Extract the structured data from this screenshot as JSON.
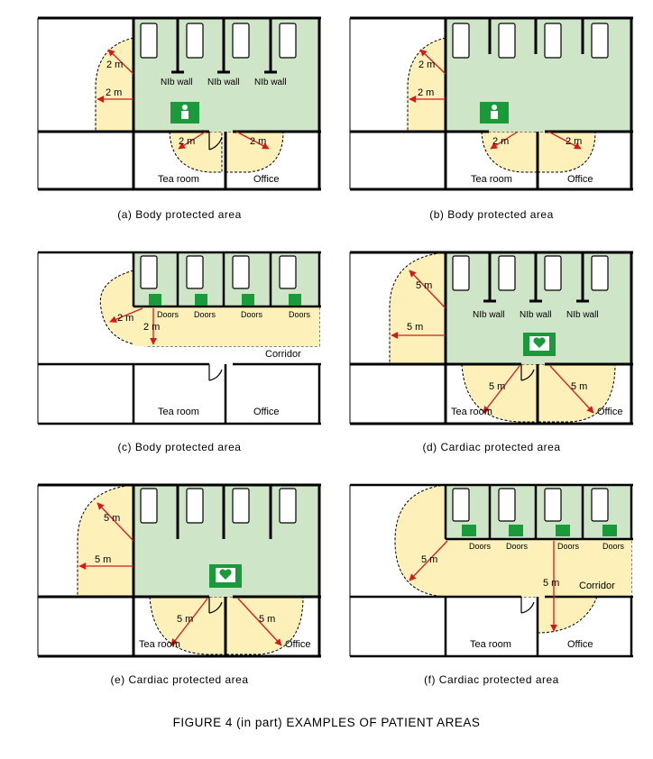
{
  "figure": {
    "title": "FIGURE 4  (in part)   EXAMPLES OF PATIENT AREAS"
  },
  "panels": [
    {
      "caption": "(a) Body protected area",
      "labels": {
        "radius": "2 m",
        "room_left": "Tea room",
        "room_right": "Office",
        "partition": "NIb wall",
        "corridor": "",
        "door": ""
      },
      "symbol": "body-protected-sign"
    },
    {
      "caption": "(b) Body protected area",
      "labels": {
        "radius": "2 m",
        "room_left": "Tea room",
        "room_right": "Office",
        "partition": "",
        "corridor": "",
        "door": ""
      },
      "symbol": "body-protected-sign"
    },
    {
      "caption": "(c) Body protected area",
      "labels": {
        "radius": "2 m",
        "room_left": "Tea room",
        "room_right": "Office",
        "partition": "",
        "corridor": "Corridor",
        "door": "Doors"
      },
      "symbol": "body-protected-sign"
    },
    {
      "caption": "(d) Cardiac protected area",
      "labels": {
        "radius": "5 m",
        "room_left": "Tea room",
        "room_right": "Office",
        "partition": "NIb wall",
        "corridor": "",
        "door": ""
      },
      "symbol": "cardiac-protected-sign"
    },
    {
      "caption": "(e) Cardiac protected area",
      "labels": {
        "radius": "5 m",
        "room_left": "Tea room",
        "room_right": "Office",
        "partition": "",
        "corridor": "",
        "door": ""
      },
      "symbol": "cardiac-protected-sign"
    },
    {
      "caption": "(f) Cardiac protected area",
      "labels": {
        "radius": "5 m",
        "room_left": "Tea room",
        "room_right": "Office",
        "partition": "",
        "corridor": "Corridor",
        "door": "Doors"
      },
      "symbol": "cardiac-protected-sign"
    }
  ],
  "colors": {
    "green_area": "#cfe5c8",
    "yellow_area": "#fdf0b9",
    "wall": "#000000",
    "arrow": "#d11b1b",
    "sign": "#1a9a3a"
  }
}
